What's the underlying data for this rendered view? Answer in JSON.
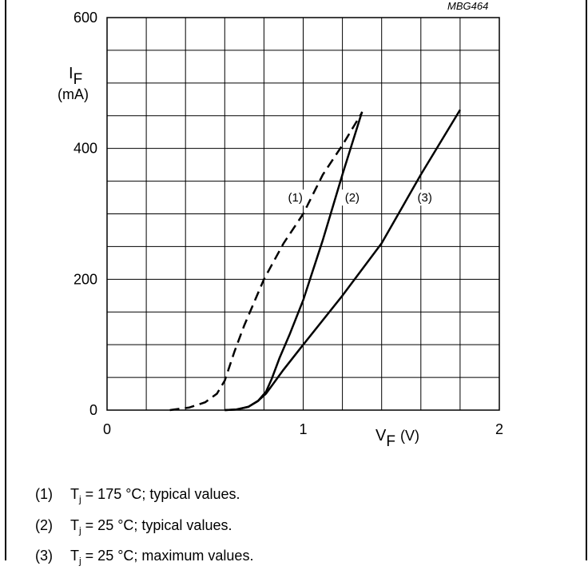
{
  "figure_ref": "MBG464",
  "chart_data": {
    "type": "line",
    "xlabel_main": "V",
    "xlabel_sub": "F",
    "xlabel_unit": "(V)",
    "ylabel_main": "I",
    "ylabel_sub": "F",
    "ylabel_unit": "(mA)",
    "xlim": [
      0,
      2
    ],
    "ylim": [
      0,
      600
    ],
    "x_ticks": [
      0,
      1,
      2
    ],
    "x_tick_labels": [
      "0",
      "1",
      "2"
    ],
    "y_ticks": [
      0,
      200,
      400,
      600
    ],
    "y_tick_labels": [
      "0",
      "200",
      "400",
      "600"
    ],
    "x_minor_step": 0.2,
    "y_minor_step": 50,
    "grid": true,
    "series": [
      {
        "name": "(1)",
        "style": "dashed",
        "points": [
          [
            0.32,
            0
          ],
          [
            0.42,
            4
          ],
          [
            0.5,
            12
          ],
          [
            0.56,
            25
          ],
          [
            0.6,
            45
          ],
          [
            0.65,
            90
          ],
          [
            0.7,
            130
          ],
          [
            0.8,
            200
          ],
          [
            0.9,
            255
          ],
          [
            1.0,
            300
          ],
          [
            1.1,
            360
          ],
          [
            1.2,
            405
          ],
          [
            1.3,
            455
          ]
        ]
      },
      {
        "name": "(2)",
        "style": "solid",
        "points": [
          [
            0.6,
            0
          ],
          [
            0.66,
            1
          ],
          [
            0.72,
            5
          ],
          [
            0.77,
            14
          ],
          [
            0.81,
            28
          ],
          [
            0.84,
            48
          ],
          [
            0.88,
            80
          ],
          [
            0.93,
            115
          ],
          [
            1.0,
            168
          ],
          [
            1.1,
            260
          ],
          [
            1.2,
            360
          ],
          [
            1.3,
            456
          ]
        ]
      },
      {
        "name": "(3)",
        "style": "solid",
        "points": [
          [
            0.6,
            0
          ],
          [
            0.66,
            1
          ],
          [
            0.72,
            5
          ],
          [
            0.77,
            14
          ],
          [
            0.81,
            25
          ],
          [
            0.9,
            62
          ],
          [
            1.0,
            100
          ],
          [
            1.2,
            175
          ],
          [
            1.4,
            255
          ],
          [
            1.6,
            360
          ],
          [
            1.8,
            459
          ]
        ]
      }
    ],
    "series_labels": [
      {
        "text": "(1)",
        "x": 0.96,
        "y": 320
      },
      {
        "text": "(2)",
        "x": 1.25,
        "y": 320
      },
      {
        "text": "(3)",
        "x": 1.62,
        "y": 320
      }
    ]
  },
  "legend": [
    {
      "num": "(1)",
      "t": "T",
      "sub": "j",
      "text": " = 175 °C; typical values."
    },
    {
      "num": "(2)",
      "t": "T",
      "sub": "j",
      "text": " = 25 °C; typical values."
    },
    {
      "num": "(3)",
      "t": "T",
      "sub": "j",
      "text": " = 25 °C; maximum values."
    }
  ]
}
